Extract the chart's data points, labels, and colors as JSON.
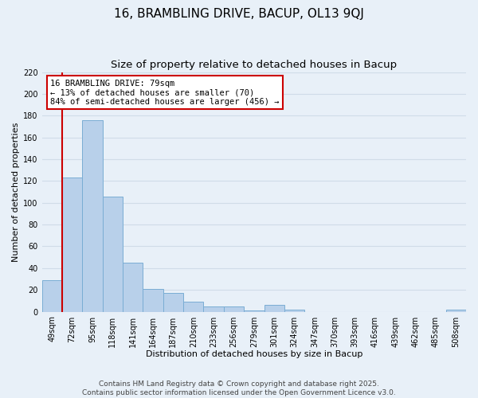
{
  "title": "16, BRAMBLING DRIVE, BACUP, OL13 9QJ",
  "subtitle": "Size of property relative to detached houses in Bacup",
  "xlabel": "Distribution of detached houses by size in Bacup",
  "ylabel": "Number of detached properties",
  "bins": [
    "49sqm",
    "72sqm",
    "95sqm",
    "118sqm",
    "141sqm",
    "164sqm",
    "187sqm",
    "210sqm",
    "233sqm",
    "256sqm",
    "279sqm",
    "301sqm",
    "324sqm",
    "347sqm",
    "370sqm",
    "393sqm",
    "416sqm",
    "439sqm",
    "462sqm",
    "485sqm",
    "508sqm"
  ],
  "values": [
    29,
    123,
    176,
    106,
    45,
    21,
    17,
    9,
    5,
    5,
    1,
    6,
    2,
    0,
    0,
    0,
    0,
    0,
    0,
    0,
    2
  ],
  "bar_color": "#b8d0ea",
  "bar_edge_color": "#7aadd4",
  "vline_color": "#cc0000",
  "annotation_title": "16 BRAMBLING DRIVE: 79sqm",
  "annotation_line1": "← 13% of detached houses are smaller (70)",
  "annotation_line2": "84% of semi-detached houses are larger (456) →",
  "annotation_box_color": "#ffffff",
  "annotation_box_edge": "#cc0000",
  "ylim": [
    0,
    220
  ],
  "yticks": [
    0,
    20,
    40,
    60,
    80,
    100,
    120,
    140,
    160,
    180,
    200,
    220
  ],
  "background_color": "#e8f0f8",
  "grid_color": "#d0dce8",
  "footer1": "Contains HM Land Registry data © Crown copyright and database right 2025.",
  "footer2": "Contains public sector information licensed under the Open Government Licence v3.0.",
  "title_fontsize": 11,
  "subtitle_fontsize": 9.5,
  "axis_label_fontsize": 8,
  "tick_fontsize": 7,
  "footer_fontsize": 6.5
}
